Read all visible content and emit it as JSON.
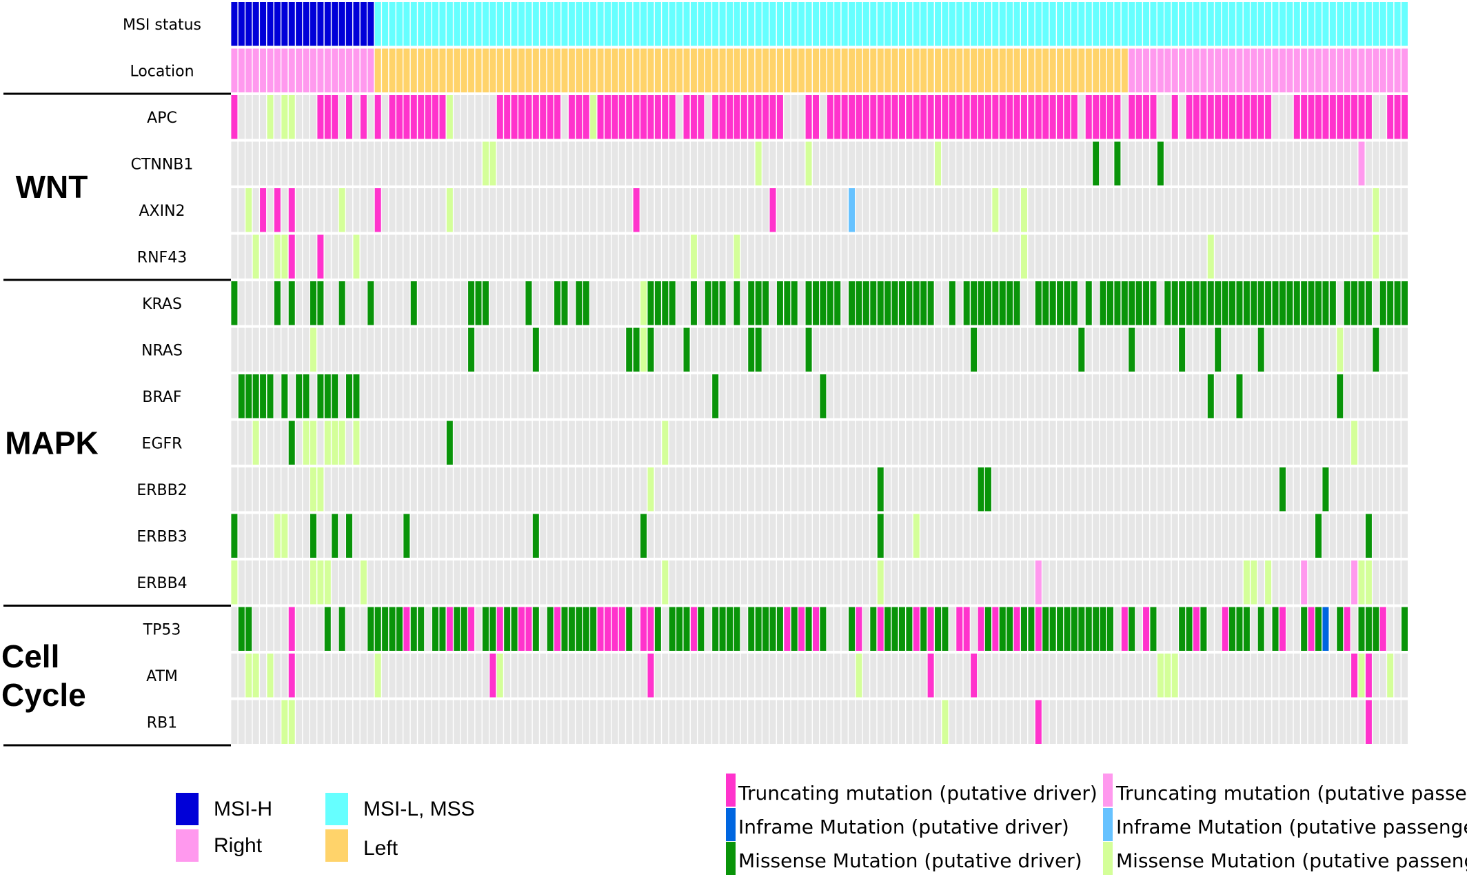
{
  "chart_data": {
    "type": "heatmap",
    "subtype": "oncoprint",
    "n_samples": 164,
    "annotation_tracks": [
      {
        "label": "MSI status",
        "segments": [
          {
            "value": "MSI-H",
            "start": 0,
            "end": 20
          },
          {
            "value": "MSI-L, MSS",
            "start": 20,
            "end": 164
          }
        ]
      },
      {
        "label": "Location",
        "segments": [
          {
            "value": "Right",
            "start": 0,
            "end": 20
          },
          {
            "value": "Left",
            "start": 20,
            "end": 125
          },
          {
            "value": "Right",
            "start": 125,
            "end": 164
          }
        ]
      }
    ],
    "annotation_colors": {
      "MSI-H": "#0000d8",
      "MSI-L, MSS": "#66ffff",
      "Right": "#ff99ee",
      "Left": "#ffd36a"
    },
    "groups": [
      {
        "label": "WNT",
        "genes": [
          "APC",
          "CTNNB1",
          "AXIN2",
          "RNF43"
        ]
      },
      {
        "label": "MAPK",
        "genes": [
          "KRAS",
          "NRAS",
          "BRAF",
          "EGFR",
          "ERBB2",
          "ERBB3",
          "ERBB4"
        ]
      },
      {
        "label": "Cell Cycle",
        "label_lines": [
          "Cell",
          "Cycle"
        ],
        "genes": [
          "TP53",
          "ATM",
          "RB1"
        ]
      }
    ],
    "genes": [
      {
        "name": "APC",
        "alterations": [
          {
            "type": "truncating_driver",
            "samples": [
              0,
              12,
              13,
              14,
              16,
              18,
              20,
              22,
              23,
              24,
              25,
              26,
              27,
              28,
              29,
              37,
              38,
              39,
              40,
              41,
              42,
              43,
              44,
              45,
              47,
              48,
              49,
              51,
              52,
              53,
              54,
              55,
              56,
              57,
              58,
              59,
              60,
              61,
              63,
              64,
              65,
              67,
              68,
              69,
              70,
              71,
              72,
              73,
              74,
              75,
              76,
              80,
              81,
              83,
              84,
              85,
              86,
              87,
              88,
              89,
              90,
              91,
              92,
              93,
              94,
              95,
              96,
              97,
              98,
              99,
              100,
              101,
              102,
              103,
              104,
              105,
              106,
              107,
              108,
              109,
              110,
              111,
              112,
              113,
              114,
              115,
              116,
              117,
              119,
              120,
              121,
              122,
              123,
              125,
              126,
              127,
              128,
              131,
              133,
              134,
              135,
              136,
              137,
              138,
              139,
              140,
              141,
              142,
              143,
              144,
              148,
              149,
              150,
              151,
              152,
              153,
              154,
              155,
              156,
              157,
              158,
              161,
              162,
              163
            ]
          },
          {
            "type": "missense_passenger",
            "samples": [
              5,
              7,
              8,
              30,
              50
            ]
          }
        ]
      },
      {
        "name": "CTNNB1",
        "alterations": [
          {
            "type": "missense_driver",
            "samples": [
              120,
              123,
              129
            ]
          },
          {
            "type": "missense_passenger",
            "samples": [
              35,
              36,
              73,
              80,
              98
            ]
          },
          {
            "type": "truncating_passenger",
            "samples": [
              157
            ]
          }
        ]
      },
      {
        "name": "AXIN2",
        "alterations": [
          {
            "type": "truncating_driver",
            "samples": [
              4,
              6,
              8,
              20,
              56,
              75
            ]
          },
          {
            "type": "inframe_passenger",
            "samples": [
              86
            ]
          },
          {
            "type": "missense_passenger",
            "samples": [
              2,
              15,
              30,
              106,
              110,
              159
            ]
          }
        ]
      },
      {
        "name": "RNF43",
        "alterations": [
          {
            "type": "truncating_driver",
            "samples": [
              8,
              12
            ]
          },
          {
            "type": "missense_passenger",
            "samples": [
              3,
              6,
              7,
              17,
              64,
              70,
              110,
              136,
              159
            ]
          }
        ]
      },
      {
        "name": "KRAS",
        "alterations": [
          {
            "type": "missense_driver",
            "samples": [
              0,
              6,
              8,
              11,
              12,
              15,
              19,
              25,
              33,
              34,
              35,
              41,
              45,
              46,
              48,
              49,
              58,
              59,
              60,
              61,
              64,
              66,
              67,
              68,
              70,
              72,
              73,
              74,
              76,
              77,
              78,
              80,
              81,
              82,
              83,
              84,
              86,
              87,
              88,
              89,
              90,
              91,
              92,
              93,
              94,
              95,
              96,
              97,
              100,
              102,
              103,
              104,
              105,
              106,
              107,
              108,
              109,
              112,
              113,
              114,
              115,
              116,
              117,
              119,
              121,
              122,
              123,
              124,
              125,
              126,
              127,
              128,
              130,
              131,
              132,
              133,
              134,
              135,
              136,
              137,
              138,
              139,
              140,
              141,
              142,
              143,
              144,
              145,
              146,
              147,
              148,
              149,
              150,
              151,
              152,
              153,
              155,
              156,
              157,
              158,
              160,
              161,
              162,
              163
            ]
          },
          {
            "type": "missense_passenger",
            "samples": [
              57
            ]
          }
        ]
      },
      {
        "name": "NRAS",
        "alterations": [
          {
            "type": "missense_driver",
            "samples": [
              33,
              42,
              55,
              56,
              58,
              63,
              72,
              73,
              80,
              103,
              118,
              125,
              132,
              137,
              143,
              159
            ]
          },
          {
            "type": "missense_passenger",
            "samples": [
              11,
              57,
              154
            ]
          }
        ]
      },
      {
        "name": "BRAF",
        "alterations": [
          {
            "type": "missense_driver",
            "samples": [
              1,
              2,
              3,
              4,
              5,
              7,
              9,
              10,
              12,
              13,
              14,
              16,
              17,
              67,
              82,
              136,
              140,
              154
            ]
          }
        ]
      },
      {
        "name": "EGFR",
        "alterations": [
          {
            "type": "missense_driver",
            "samples": [
              8,
              30
            ]
          },
          {
            "type": "missense_passenger",
            "samples": [
              3,
              10,
              11,
              13,
              14,
              15,
              17,
              60,
              156
            ]
          }
        ]
      },
      {
        "name": "ERBB2",
        "alterations": [
          {
            "type": "missense_driver",
            "samples": [
              90,
              104,
              105,
              146,
              152
            ]
          },
          {
            "type": "missense_passenger",
            "samples": [
              11,
              12,
              58
            ]
          }
        ]
      },
      {
        "name": "ERBB3",
        "alterations": [
          {
            "type": "missense_driver",
            "samples": [
              0,
              11,
              14,
              16,
              24,
              42,
              57,
              90,
              151,
              158
            ]
          },
          {
            "type": "missense_passenger",
            "samples": [
              6,
              7,
              95
            ]
          }
        ]
      },
      {
        "name": "ERBB4",
        "alterations": [
          {
            "type": "truncating_passenger",
            "samples": [
              112,
              149,
              156
            ]
          },
          {
            "type": "missense_passenger",
            "samples": [
              0,
              11,
              12,
              13,
              18,
              60,
              90,
              141,
              142,
              144,
              157,
              158
            ]
          }
        ]
      },
      {
        "name": "TP53",
        "alterations": [
          {
            "type": "missense_driver",
            "samples": [
              1,
              2,
              13,
              15,
              19,
              20,
              21,
              22,
              23,
              24,
              25,
              26,
              28,
              29,
              31,
              32,
              35,
              36,
              37,
              38,
              39,
              40,
              41,
              42,
              44,
              45,
              46,
              47,
              48,
              49,
              50,
              51,
              52,
              54,
              55,
              58,
              59,
              61,
              62,
              63,
              65,
              67,
              68,
              69,
              70,
              72,
              73,
              74,
              75,
              76,
              77,
              78,
              80,
              82,
              86,
              89,
              90,
              91,
              92,
              93,
              94,
              96,
              98,
              99,
              101,
              104,
              105,
              107,
              108,
              109,
              110,
              111,
              113,
              114,
              115,
              116,
              117,
              118,
              119,
              120,
              121,
              122,
              125,
              128,
              132,
              133,
              135,
              138,
              139,
              140,
              141,
              143,
              145,
              149,
              151,
              154,
              157,
              158,
              159,
              163
            ]
          },
          {
            "type": "truncating_driver",
            "samples": [
              8,
              24,
              30,
              33,
              37,
              40,
              41,
              45,
              51,
              52,
              53,
              54,
              57,
              58,
              64,
              77,
              79,
              81,
              87,
              90,
              95,
              97,
              101,
              102,
              104,
              106,
              109,
              112,
              124,
              127,
              134,
              138,
              146,
              150,
              155,
              160
            ]
          },
          {
            "type": "inframe_driver",
            "samples": [
              152
            ]
          }
        ]
      },
      {
        "name": "ATM",
        "alterations": [
          {
            "type": "truncating_driver",
            "samples": [
              8,
              36,
              58,
              97,
              103,
              130,
              156,
              158
            ]
          },
          {
            "type": "missense_passenger",
            "samples": [
              2,
              3,
              5,
              20,
              37,
              87,
              129,
              130,
              131,
              157,
              161
            ]
          }
        ]
      },
      {
        "name": "RB1",
        "alterations": [
          {
            "type": "truncating_driver",
            "samples": [
              112,
              158
            ]
          },
          {
            "type": "missense_passenger",
            "samples": [
              7,
              8,
              99
            ]
          }
        ]
      }
    ],
    "alteration_colors": {
      "background": "#e6e6e6",
      "truncating_driver": "#ff33cc",
      "inframe_driver": "#0066e0",
      "missense_driver": "#099409",
      "truncating_passenger": "#ff99ee",
      "inframe_passenger": "#66c2ff",
      "missense_passenger": "#d4ff99"
    },
    "legend_left": [
      {
        "key": "MSI-H",
        "label": "MSI-H"
      },
      {
        "key": "MSI-L, MSS",
        "label": "MSI-L, MSS"
      },
      {
        "key": "Right",
        "label": "Right"
      },
      {
        "key": "Left",
        "label": "Left"
      }
    ],
    "legend_right": [
      {
        "key": "truncating_driver",
        "label": "Truncating mutation (putative driver)"
      },
      {
        "key": "truncating_passenger",
        "label": "Truncating mutation (putative passenger)"
      },
      {
        "key": "inframe_driver",
        "label": "Inframe Mutation (putative driver)"
      },
      {
        "key": "inframe_passenger",
        "label": "Inframe Mutation (putative passenger)"
      },
      {
        "key": "missense_driver",
        "label": "Missense Mutation (putative driver)"
      },
      {
        "key": "missense_passenger",
        "label": "Missense Mutation (putative passenger)"
      }
    ]
  }
}
